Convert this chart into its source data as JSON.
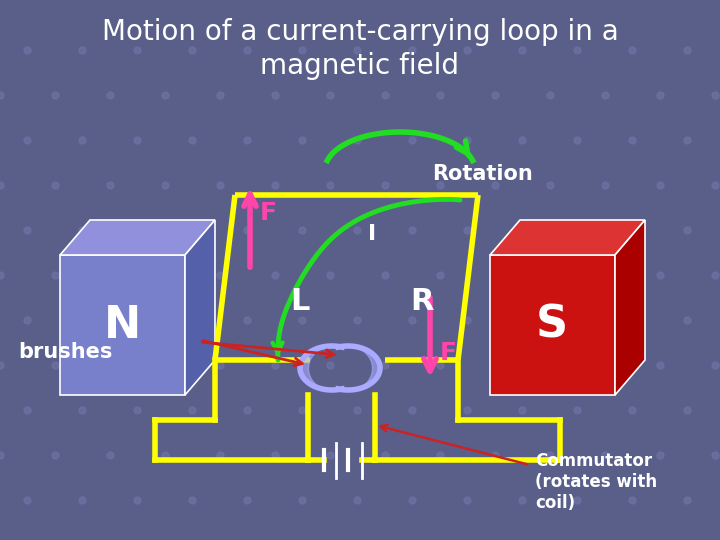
{
  "title_line1": "Motion of a current-carrying loop in a",
  "title_line2": "magnetic field",
  "title_color": "white",
  "title_fontsize": 20,
  "bg_color": "#5a5f8a",
  "grid_line_color": "#6870a8",
  "N_label": "N",
  "S_label": "S",
  "L_label": "L",
  "R_label": "R",
  "F_label": "F",
  "I_label": "I",
  "rotation_label": "Rotation",
  "brushes_label": "brushes",
  "commutator_label": "Commutator\n(rotates with\ncoil)",
  "north_front": "#7880cc",
  "north_top": "#9090dd",
  "north_side": "#5560aa",
  "south_front": "#cc1111",
  "south_top": "#dd3333",
  "south_side": "#aa0000",
  "loop_color": "#ffff00",
  "F_color": "#ff44aa",
  "rotation_color": "#22dd22",
  "commutator_color": "#aaaaff",
  "brush_arrow_color": "#cc2222",
  "red_line_color": "#cc2222",
  "label_color": "white",
  "dot_color": "#7075a8"
}
